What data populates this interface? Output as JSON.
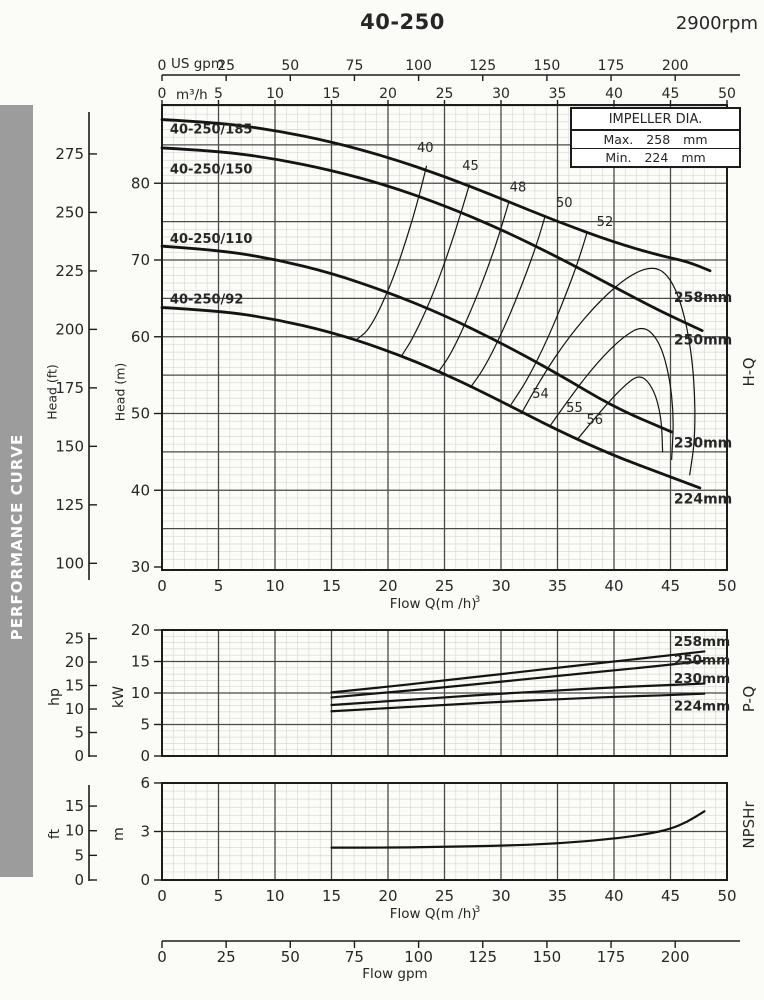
{
  "header": {
    "title": "40-250",
    "rpm": "2900rpm"
  },
  "banner": {
    "text": "PERFORMANCE CURVE"
  },
  "impeller_box": {
    "title": "IMPELLER DIA.",
    "rows": [
      {
        "label": "Max.",
        "value": "258",
        "unit": "mm"
      },
      {
        "label": "Min.",
        "value": "224",
        "unit": "mm"
      }
    ]
  },
  "labels": {
    "us_gpm": "US gpm",
    "m3h": "m³/h",
    "head_ft": "Head (ft)",
    "head_m": "Head (m)",
    "hp": "hp",
    "kw": "kW",
    "ft": "ft",
    "m": "m",
    "hq": "H-Q",
    "pq": "P-Q",
    "npshr": "NPSHr",
    "flow_m3h": "Flow Q(m /h)",
    "flow_sup": "3",
    "flow_gpm": "Flow gpm"
  },
  "chart_data": [
    {
      "name": "H-Q",
      "type": "line",
      "xlabel": "Flow Q(m³/h)",
      "x_range": [
        0,
        50
      ],
      "x_ticks": [
        0,
        5,
        10,
        15,
        20,
        25,
        30,
        35,
        40,
        45,
        50
      ],
      "x2label": "US gpm",
      "x2_ticks": [
        0,
        25,
        50,
        75,
        100,
        125,
        150,
        175,
        200
      ],
      "ylabel_outer": "Head (ft)",
      "y_ticks_ft": [
        100,
        125,
        150,
        175,
        200,
        225,
        250,
        275
      ],
      "ylabel_inner": "Head (m)",
      "y_ticks_m": [
        30,
        40,
        50,
        60,
        70,
        80
      ],
      "y_range_m": [
        29.6,
        90.2
      ],
      "series": [
        {
          "model": "40-250/185",
          "impeller": "258mm",
          "model_label_at": [
            0.7,
            86.5
          ],
          "dia_label_at": [
            45.3,
            64.5
          ],
          "points": [
            [
              0,
              88.3
            ],
            [
              5,
              87.9
            ],
            [
              10,
              86.9
            ],
            [
              15,
              85.4
            ],
            [
              20,
              83.4
            ],
            [
              25,
              80.9
            ],
            [
              30,
              78.0
            ],
            [
              35,
              75.0
            ],
            [
              40,
              72.3
            ],
            [
              44,
              70.6
            ],
            [
              46.5,
              69.8
            ],
            [
              48.5,
              68.6
            ]
          ]
        },
        {
          "model": "40-250/150",
          "impeller": "250mm",
          "model_label_at": [
            0.7,
            81.3
          ],
          "dia_label_at": [
            45.3,
            59.0
          ],
          "points": [
            [
              0,
              84.6
            ],
            [
              5,
              84.2
            ],
            [
              10,
              83.2
            ],
            [
              15,
              81.7
            ],
            [
              20,
              79.7
            ],
            [
              25,
              77.1
            ],
            [
              30,
              74.0
            ],
            [
              35,
              70.4
            ],
            [
              40,
              66.5
            ],
            [
              44,
              63.4
            ],
            [
              47.8,
              60.8
            ]
          ]
        },
        {
          "model": "40-250/110",
          "impeller": "230mm",
          "model_label_at": [
            0.7,
            72.2
          ],
          "dia_label_at": [
            45.3,
            45.6
          ],
          "points": [
            [
              0,
              71.8
            ],
            [
              5,
              71.3
            ],
            [
              10,
              70.1
            ],
            [
              15,
              68.3
            ],
            [
              20,
              65.8
            ],
            [
              25,
              62.8
            ],
            [
              30,
              59.2
            ],
            [
              35,
              55.2
            ],
            [
              40,
              50.8
            ],
            [
              45.1,
              47.6
            ]
          ]
        },
        {
          "model": "40-250/92",
          "impeller": "224mm",
          "model_label_at": [
            0.7,
            64.3
          ],
          "dia_label_at": [
            45.3,
            38.3
          ],
          "points": [
            [
              0,
              63.8
            ],
            [
              5,
              63.4
            ],
            [
              10,
              62.3
            ],
            [
              15,
              60.6
            ],
            [
              20,
              58.2
            ],
            [
              25,
              55.2
            ],
            [
              30,
              51.6
            ],
            [
              35,
              47.8
            ],
            [
              40,
              44.5
            ],
            [
              44,
              42.3
            ],
            [
              47.6,
              40.3
            ]
          ]
        }
      ],
      "efficiency_contours": [
        {
          "label": "40",
          "label_at": [
            23.3,
            84.1
          ],
          "points": [
            [
              23.4,
              82.2
            ],
            [
              22.8,
              78.5
            ],
            [
              21.6,
              72.5
            ],
            [
              20.2,
              66.5
            ],
            [
              18.4,
              61.0
            ],
            [
              17.2,
              59.6
            ]
          ]
        },
        {
          "label": "45",
          "label_at": [
            27.3,
            81.7
          ],
          "points": [
            [
              27.2,
              79.8
            ],
            [
              26.6,
              76.8
            ],
            [
              25.4,
              71.2
            ],
            [
              23.8,
              64.8
            ],
            [
              22.2,
              59.8
            ],
            [
              21.2,
              57.5
            ]
          ]
        },
        {
          "label": "48",
          "label_at": [
            31.5,
            78.9
          ],
          "points": [
            [
              30.7,
              77.6
            ],
            [
              30.1,
              74.5
            ],
            [
              28.9,
              69.2
            ],
            [
              27.3,
              63.2
            ],
            [
              25.6,
              57.8
            ],
            [
              24.5,
              55.5
            ]
          ]
        },
        {
          "label": "50",
          "label_at": [
            35.6,
            76.9
          ],
          "points": [
            [
              33.9,
              75.7
            ],
            [
              33.3,
              72.6
            ],
            [
              32.0,
              67.3
            ],
            [
              30.4,
              61.5
            ],
            [
              28.6,
              56.1
            ],
            [
              27.3,
              53.4
            ]
          ]
        },
        {
          "label": "52",
          "label_at": [
            39.2,
            74.4
          ],
          "points": [
            [
              37.6,
              73.5
            ],
            [
              37.0,
              70.5
            ],
            [
              35.7,
              65.3
            ],
            [
              34.1,
              59.6
            ],
            [
              32.3,
              54.3
            ],
            [
              30.9,
              51.2
            ]
          ]
        },
        {
          "label": "54",
          "label_at": [
            33.5,
            52.0
          ],
          "points": [
            [
              31.8,
              50.0
            ],
            [
              33.5,
              54.5
            ],
            [
              36.0,
              60.0
            ],
            [
              38.8,
              64.8
            ],
            [
              41.5,
              68.2
            ],
            [
              43.8,
              69.3
            ],
            [
              45.3,
              67.0
            ],
            [
              46.4,
              62.0
            ],
            [
              47.1,
              55.0
            ],
            [
              47.2,
              47.0
            ],
            [
              46.7,
              42.0
            ]
          ]
        },
        {
          "label": "55",
          "label_at": [
            36.5,
            50.2
          ],
          "points": [
            [
              34.3,
              48.3
            ],
            [
              36.3,
              52.5
            ],
            [
              38.6,
              56.8
            ],
            [
              40.8,
              60.0
            ],
            [
              42.6,
              61.5
            ],
            [
              44.0,
              59.5
            ],
            [
              44.9,
              55.0
            ],
            [
              45.3,
              49.5
            ],
            [
              45.1,
              44.0
            ]
          ]
        },
        {
          "label": "56",
          "label_at": [
            38.3,
            48.6
          ],
          "points": [
            [
              36.8,
              46.7
            ],
            [
              38.8,
              50.3
            ],
            [
              40.8,
              53.5
            ],
            [
              42.3,
              55.2
            ],
            [
              43.5,
              53.3
            ],
            [
              44.2,
              49.5
            ],
            [
              44.3,
              45.0
            ]
          ]
        }
      ]
    },
    {
      "name": "P-Q",
      "type": "line",
      "x_range": [
        0,
        50
      ],
      "ylabel_outer": "hp",
      "y_ticks_hp": [
        0,
        5,
        10,
        15,
        20,
        25
      ],
      "ylabel_inner": "kW",
      "y_ticks_kw": [
        0,
        5,
        10,
        15,
        20
      ],
      "y_range_kw": [
        0,
        20
      ],
      "series": [
        {
          "impeller": "258mm",
          "label_at": [
            45.3,
            17.5
          ],
          "points": [
            [
              15,
              10.1
            ],
            [
              20,
              11.0
            ],
            [
              25,
              12.0
            ],
            [
              30,
              13.0
            ],
            [
              35,
              14.0
            ],
            [
              40,
              15.0
            ],
            [
              44,
              15.8
            ],
            [
              48,
              16.6
            ]
          ]
        },
        {
          "impeller": "250mm",
          "label_at": [
            45.3,
            14.5
          ],
          "points": [
            [
              15,
              9.3
            ],
            [
              20,
              10.1
            ],
            [
              25,
              10.9
            ],
            [
              30,
              11.8
            ],
            [
              35,
              12.7
            ],
            [
              40,
              13.6
            ],
            [
              44,
              14.3
            ],
            [
              48,
              15.1
            ]
          ]
        },
        {
          "impeller": "230mm",
          "label_at": [
            45.3,
            11.6
          ],
          "points": [
            [
              15,
              8.1
            ],
            [
              20,
              8.7
            ],
            [
              25,
              9.3
            ],
            [
              30,
              9.9
            ],
            [
              35,
              10.4
            ],
            [
              40,
              10.9
            ],
            [
              44,
              11.2
            ],
            [
              48,
              11.5
            ]
          ]
        },
        {
          "impeller": "224mm",
          "label_at": [
            45.3,
            7.2
          ],
          "points": [
            [
              15,
              7.1
            ],
            [
              20,
              7.6
            ],
            [
              25,
              8.1
            ],
            [
              30,
              8.6
            ],
            [
              35,
              9.0
            ],
            [
              40,
              9.4
            ],
            [
              44,
              9.6
            ],
            [
              48,
              9.9
            ]
          ]
        }
      ]
    },
    {
      "name": "NPSHr",
      "type": "line",
      "xlabel": "Flow Q(m³/h)",
      "x_range": [
        0,
        50
      ],
      "x_ticks": [
        0,
        5,
        10,
        15,
        20,
        25,
        30,
        35,
        40,
        45,
        50
      ],
      "x2label": "Flow gpm",
      "x2_ticks": [
        0,
        25,
        50,
        75,
        100,
        125,
        150,
        175,
        200
      ],
      "ylabel_outer": "ft",
      "y_ticks_ft": [
        0,
        5,
        10,
        15
      ],
      "ylabel_inner": "m",
      "y_ticks_m": [
        0,
        3,
        6
      ],
      "y_range_m": [
        0,
        6
      ],
      "series": [
        {
          "name": "NPSHr",
          "points": [
            [
              15,
              2.0
            ],
            [
              20,
              2.0
            ],
            [
              25,
              2.05
            ],
            [
              30,
              2.12
            ],
            [
              35,
              2.25
            ],
            [
              40,
              2.55
            ],
            [
              43,
              2.85
            ],
            [
              45,
              3.15
            ],
            [
              46.5,
              3.6
            ],
            [
              48,
              4.25
            ]
          ]
        }
      ]
    }
  ]
}
